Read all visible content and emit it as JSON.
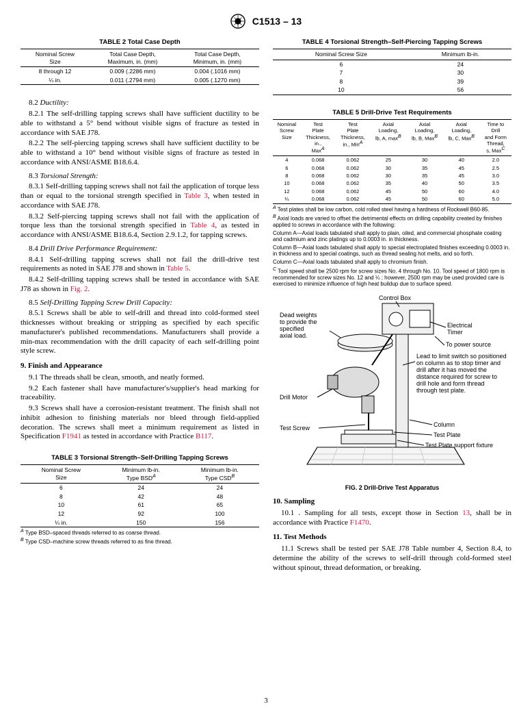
{
  "doc_id": "C1513 – 13",
  "page_number": "3",
  "table2": {
    "title": "TABLE 2 Total Case Depth",
    "headers": [
      "Nominal Screw\nSize",
      "Total Case Depth,\nMaximum, in. (mm)",
      "Total Case Depth,\nMinimum, in. (mm)"
    ],
    "rows": [
      [
        "8 through 12",
        "0.009 (.2286 mm)",
        "0.004 (.1016 mm)"
      ],
      [
        "¼ in.",
        "0.011 (.2794 mm)",
        "0.005 (.1270 mm)"
      ]
    ]
  },
  "sec_8_2": {
    "head_num": "8.2",
    "head_title": "Ductility:"
  },
  "p_8_2_1": "8.2.1 The self-drilling tapping screws shall have sufficient ductility to be able to withstand a 5° bend without visible signs of fracture as tested in accordance with SAE J78.",
  "p_8_2_2": "8.2.2 The self-piercing tapping screws shall have sufficient ductility to be able to withstand a 10° bend without visible signs of fracture as tested in accordance with ANSI/ASME B18.6.4.",
  "sec_8_3": {
    "head_num": "8.3",
    "head_title": "Torsional Strength:"
  },
  "p_8_3_1_a": "8.3.1 Self-drilling tapping screws shall not fail the application of torque less than or equal to the torsional strength specified in ",
  "p_8_3_1_ref": "Table 3",
  "p_8_3_1_b": ", when tested in accordance with SAE J78.",
  "p_8_3_2_a": "8.3.2 Self-piercing tapping screws shall not fail with the application of torque less than the torsional strength specified in ",
  "p_8_3_2_ref": "Table 4",
  "p_8_3_2_b": ", as tested in accordance with ANSI/ASME B18.6.4, Section 2.9.1.2, for tapping screws.",
  "sec_8_4": {
    "head_num": "8.4",
    "head_title": "Drill Drive Performance Requirement:"
  },
  "p_8_4_1_a": "8.4.1 Self-drilling tapping screws shall not fail the drill-drive test requirements as noted in SAE J78 and shown in ",
  "p_8_4_1_ref": "Table 5",
  "p_8_4_1_b": ".",
  "p_8_4_2_a": "8.4.2 Self-drilling tapping screws shall be tested in accordance with SAE J78 as shown in ",
  "p_8_4_2_ref": "Fig. 2",
  "p_8_4_2_b": ".",
  "sec_8_5": {
    "head_num": "8.5",
    "head_title": "Self-Drilling Tapping Screw Drill Capacity:"
  },
  "p_8_5_1": "8.5.1 Screws shall be able to self-drill and thread into cold-formed steel thicknesses without breaking or stripping as specified by each specific manufacturer's published recommendations. Manufacturers shall provide a min-max recommendation with the drill capacity of each self-drilling point style screw.",
  "sec_9": "9. Finish and Appearance",
  "p_9_1": "9.1 The threads shall be clean, smooth, and neatly formed.",
  "p_9_2": "9.2 Each fastener shall have manufacturer's/supplier's head marking for traceability.",
  "p_9_3_a": "9.3 Screws shall have a corrosion-resistant treatment. The finish shall not inhibit adhesion to finishing materials nor bleed through field-applied decoration. The screws shall meet a minimum requirement as listed in Specification ",
  "p_9_3_ref1": "F1941",
  "p_9_3_b": " as tested in accordance with Practice ",
  "p_9_3_ref2": "B117",
  "p_9_3_c": ".",
  "table3": {
    "title": "TABLE 3 Torsional Strength–Self-Drilling Tapping Screws",
    "headers": [
      "Nominal Screw\nSize",
      "Minimum lb-in.\nType BSD",
      "Minimum lb-in.\nType CSD"
    ],
    "supA": "A",
    "supB": "B",
    "rows": [
      [
        "6",
        "24",
        "24"
      ],
      [
        "8",
        "42",
        "48"
      ],
      [
        "10",
        "61",
        "65"
      ],
      [
        "12",
        "92",
        "100"
      ],
      [
        "¼ in.",
        "150",
        "156"
      ]
    ],
    "fnA": " Type BSD–spaced threads referred to as coarse thread.",
    "fnB": " Type CSD–machine screw threads referred to as fine thread."
  },
  "table4": {
    "title": "TABLE 4 Torsional Strength–Self-Piercing Tapping Screws",
    "headers": [
      "Nominal Screw Size",
      "Minimum lb-in."
    ],
    "rows": [
      [
        "6",
        "24"
      ],
      [
        "7",
        "30"
      ],
      [
        "8",
        "39"
      ],
      [
        "10",
        "56"
      ]
    ]
  },
  "table5": {
    "title": "TABLE 5 Drill-Drive Test Requirements",
    "headers": [
      "Nominal\nScrew\nSize",
      "Test\nPlate\nThickness,\nin.,\nMax",
      "Test\nPlate\nThickness,\nin., Min",
      "Axial\nLoading,\nlb, A, max",
      "Axial\nLoading,\nlb, B, Max",
      "Axial\nLoading,\nlb, C, Max",
      "Time to\nDrill\nand Form\nThread,\ns, Max"
    ],
    "supA": "A",
    "supB": "B",
    "supC": "C",
    "rows": [
      [
        "4",
        "0.068",
        "0.062",
        "25",
        "30",
        "40",
        "2.0"
      ],
      [
        "6",
        "0.068",
        "0.062",
        "30",
        "35",
        "45",
        "2.5"
      ],
      [
        "8",
        "0.068",
        "0.062",
        "30",
        "35",
        "45",
        "3.0"
      ],
      [
        "10",
        "0.068",
        "0.062",
        "35",
        "40",
        "50",
        "3.5"
      ],
      [
        "12",
        "0.068",
        "0.062",
        "45",
        "50",
        "60",
        "4.0"
      ],
      [
        "¼",
        "0.068",
        "0.062",
        "45",
        "50",
        "60",
        "5.0"
      ]
    ],
    "fnA": " Test plates shall be low carbon, cold rolled steel having a hardness of Rockwell B60-85.",
    "fnB": " Axial loads are varied to offset the detrimental effects on drilling capability created by finishes applied to screws in accordance with the following:",
    "fnB_colA": "Column A—Axial loads tabulated shall apply to plain, oiled, and commercial phosphate coating and cadmium and zinc platings up to 0.0003 in. in thickness.",
    "fnB_colB": "Column B—Axial loads tabulated shall apply to special electroplated finishes exceeding 0.0003 in. in thickness and to special coatings, such as thread sealing hot melts, and so forth.",
    "fnB_colC": "Column C—Axial loads tabulated shall apply to chromium finish.",
    "fnC": " Tool speed shall be 2500 rpm for screw sizes No. 4 through No. 10. Tool speed of 1800 rpm is recommended for screw sizes No. 12 and ¼ ; however, 2500 rpm may be used provided care is exercised to minimize influence of high heat buildup due to surface speed."
  },
  "fig2": {
    "caption": "FIG. 2 Drill-Drive Test Apparatus",
    "labels": {
      "control_box": "Control Box",
      "dead_weights": "Dead weights\nto provide the\nspecified\naxial load.",
      "electrical_timer": "Electrical\nTimer",
      "to_power": "To power source",
      "lead": "Lead to limit switch so positioned\non column as to stop timer and\ndrill after it has moved the\ndistance required for screw to\ndrill hole and form thread\nthrough test plate.",
      "drill_motor": "Drill Motor",
      "column": "Column",
      "test_screw": "Test Screw",
      "test_plate": "Test Plate",
      "fixture": "Test Plate support fixture"
    }
  },
  "sec_10": "10. Sampling",
  "p_10_1_a": "10.1 . Sampling for all tests, except those in Section ",
  "p_10_1_ref1": "13",
  "p_10_1_b": ", shall be in accordance with Practice ",
  "p_10_1_ref2": "F1470",
  "p_10_1_c": ".",
  "sec_11": "11. Test Methods",
  "p_11_1": "11.1 Screws shall be tested per SAE J78 Table number 4, Section 8.4, to determine the ability of the screws to self-drill through cold-formed steel without spinout, thread deformation, or breaking."
}
